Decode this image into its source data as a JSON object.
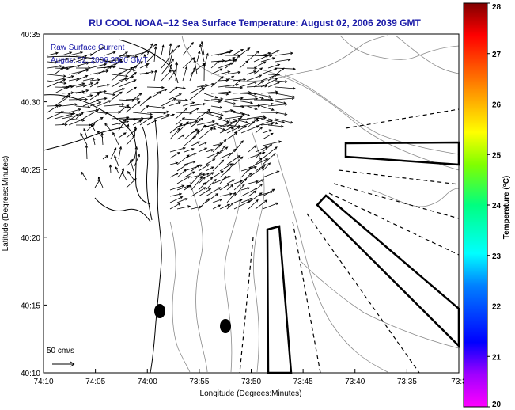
{
  "title": "RU COOL  NOAA−12  Sea Surface Temperature:  August 02, 2006 2039 GMT",
  "legend": {
    "line1": "Raw Surface Current",
    "line2": "August 02, 2006 2000 GMT"
  },
  "scale_label": "50 cm/s",
  "x_axis": {
    "label": "Longitude (Degrees:Minutes)",
    "ticks": [
      "74:10",
      "74:05",
      "74:00",
      "73:55",
      "73:50",
      "73:45",
      "73:40",
      "73:35",
      "73:3"
    ]
  },
  "y_axis": {
    "label": "Latitude (Degrees:Minutes)",
    "ticks": [
      "40:35",
      "40:30",
      "40:25",
      "40:20",
      "40:15",
      "40:10"
    ]
  },
  "colorbar": {
    "label": "Temperature (°C)",
    "ticks": [
      "28",
      "27",
      "26",
      "25",
      "24",
      "23",
      "22",
      "21",
      "20"
    ],
    "colors": [
      "#ff00ff",
      "#b000ff",
      "#0000ff",
      "#0080ff",
      "#00ffff",
      "#00ff80",
      "#80ff00",
      "#ffff00",
      "#ff8000",
      "#ff0000",
      "#800000"
    ]
  }
}
